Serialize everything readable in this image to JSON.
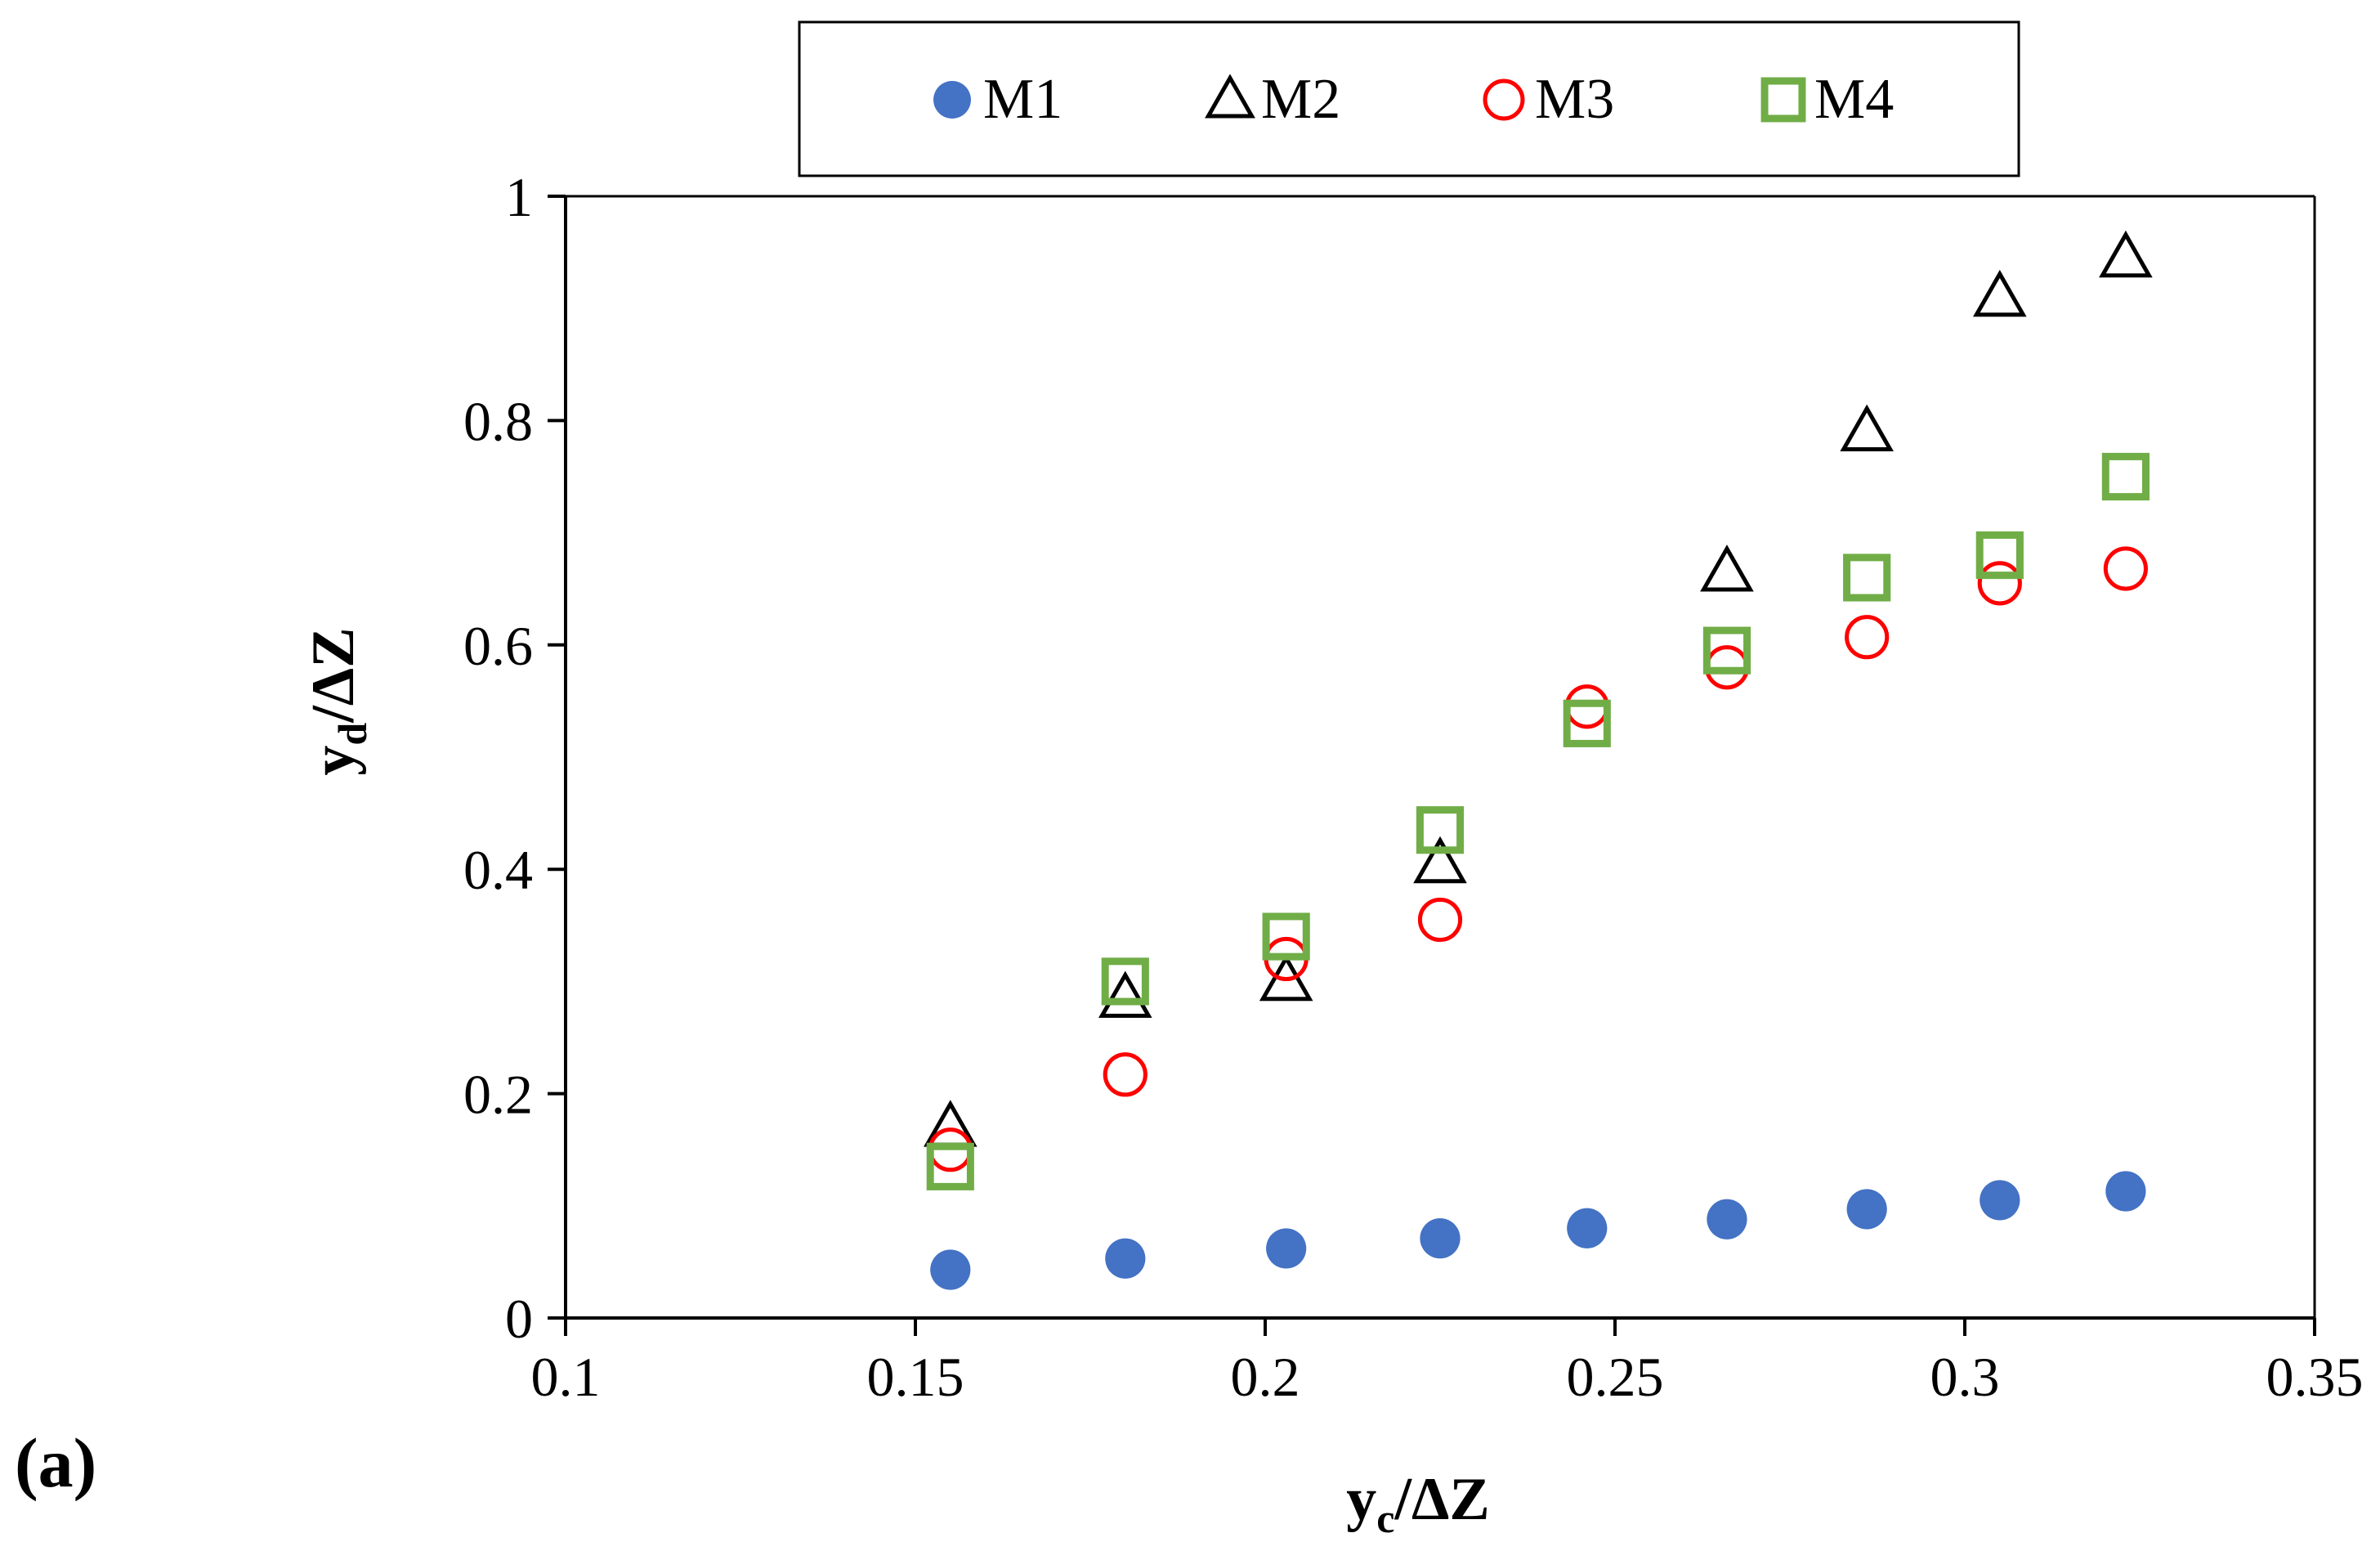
{
  "chart_data": {
    "type": "scatter",
    "panel_label": "(a)",
    "xlabel": {
      "main": "y",
      "sub": "c",
      "rest": "/ΔZ"
    },
    "ylabel": {
      "main": "y",
      "sub": "d",
      "rest": "/ΔZ"
    },
    "xlim": [
      0.1,
      0.35
    ],
    "ylim": [
      0,
      1
    ],
    "x_ticks": [
      0.1,
      0.15,
      0.2,
      0.25,
      0.3,
      0.35
    ],
    "x_tick_labels": [
      "0.1",
      "0.15",
      "0.2",
      "0.25",
      "0.3",
      "0.35"
    ],
    "y_ticks": [
      0,
      0.2,
      0.4,
      0.6,
      0.8,
      1
    ],
    "y_tick_labels": [
      "0",
      "0.2",
      "0.4",
      "0.6",
      "0.8",
      "1"
    ],
    "grid": false,
    "legend_position": "top",
    "x": [
      0.155,
      0.18,
      0.203,
      0.225,
      0.246,
      0.266,
      0.286,
      0.305,
      0.323
    ],
    "series": [
      {
        "name": "M1",
        "marker": "filled-circle",
        "color": "#4472c4",
        "values": [
          0.043,
          0.053,
          0.062,
          0.071,
          0.08,
          0.088,
          0.097,
          0.105,
          0.113
        ]
      },
      {
        "name": "M2",
        "marker": "open-triangle",
        "color": "#000000",
        "values": [
          0.17,
          0.285,
          0.3,
          0.405,
          null,
          0.665,
          0.79,
          0.91,
          0.945
        ]
      },
      {
        "name": "M3",
        "marker": "open-circle",
        "color": "#ff0000",
        "values": [
          0.15,
          0.217,
          0.32,
          0.355,
          0.545,
          0.58,
          0.607,
          0.655,
          0.668
        ]
      },
      {
        "name": "M4",
        "marker": "open-square",
        "color": "#70ad47",
        "values": [
          0.135,
          0.3,
          0.34,
          0.435,
          0.53,
          0.595,
          0.66,
          0.68,
          0.75
        ]
      }
    ]
  }
}
